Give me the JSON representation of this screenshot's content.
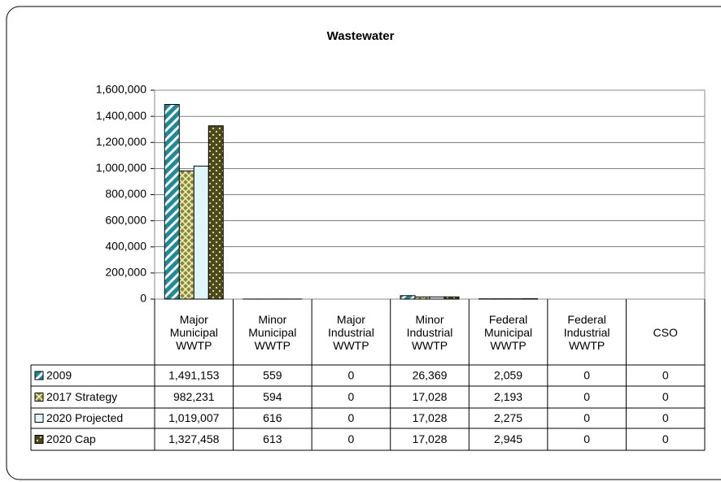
{
  "chart_data": {
    "type": "bar",
    "title": "Wastewater",
    "categories": [
      "Major Municipal WWTP",
      "Minor Municipal WWTP",
      "Major Industrial WWTP",
      "Minor Industrial WWTP",
      "Federal Municipal WWTP",
      "Federal Industrial WWTP",
      "CSO"
    ],
    "series": [
      {
        "name": "2009",
        "color": "#1f8a9a",
        "pattern": "stripes",
        "values": [
          1491153,
          559,
          0,
          26369,
          2059,
          0,
          0
        ],
        "value_labels": [
          "1,491,153",
          "559",
          "0",
          "26,369",
          "2,059",
          "0",
          "0"
        ]
      },
      {
        "name": "2017 Strategy",
        "color": "#8a8a33",
        "pattern": "crosshatch",
        "values": [
          982231,
          594,
          0,
          17028,
          2193,
          0,
          0
        ],
        "value_labels": [
          "982,231",
          "594",
          "0",
          "17,028",
          "2,193",
          "0",
          "0"
        ]
      },
      {
        "name": "2020 Projected",
        "color": "#dff7fb",
        "pattern": "solid",
        "values": [
          1019007,
          616,
          0,
          17028,
          2275,
          0,
          0
        ],
        "value_labels": [
          "1,019,007",
          "616",
          "0",
          "17,028",
          "2,275",
          "0",
          "0"
        ]
      },
      {
        "name": "2020 Cap",
        "color": "#4a4a1c",
        "pattern": "dots",
        "values": [
          1327458,
          613,
          0,
          17028,
          2945,
          0,
          0
        ],
        "value_labels": [
          "1,327,458",
          "613",
          "0",
          "17,028",
          "2,945",
          "0",
          "0"
        ]
      }
    ],
    "ylim": [
      0,
      1600000
    ],
    "yticks": [
      0,
      {
        "value": 200000,
        "label": "200,000"
      },
      {
        "value": 400000,
        "label": "400,000"
      },
      {
        "value": 600000,
        "label": "600,000"
      },
      {
        "value": 800000,
        "label": "800,000"
      },
      {
        "value": 1000000,
        "label": "1,000,000"
      },
      {
        "value": 1200000,
        "label": "1,200,000"
      },
      {
        "value": 1400000,
        "label": "1,400,000"
      },
      {
        "value": 1600000,
        "label": "1,600,000"
      }
    ],
    "grid": true,
    "data_table": true
  }
}
